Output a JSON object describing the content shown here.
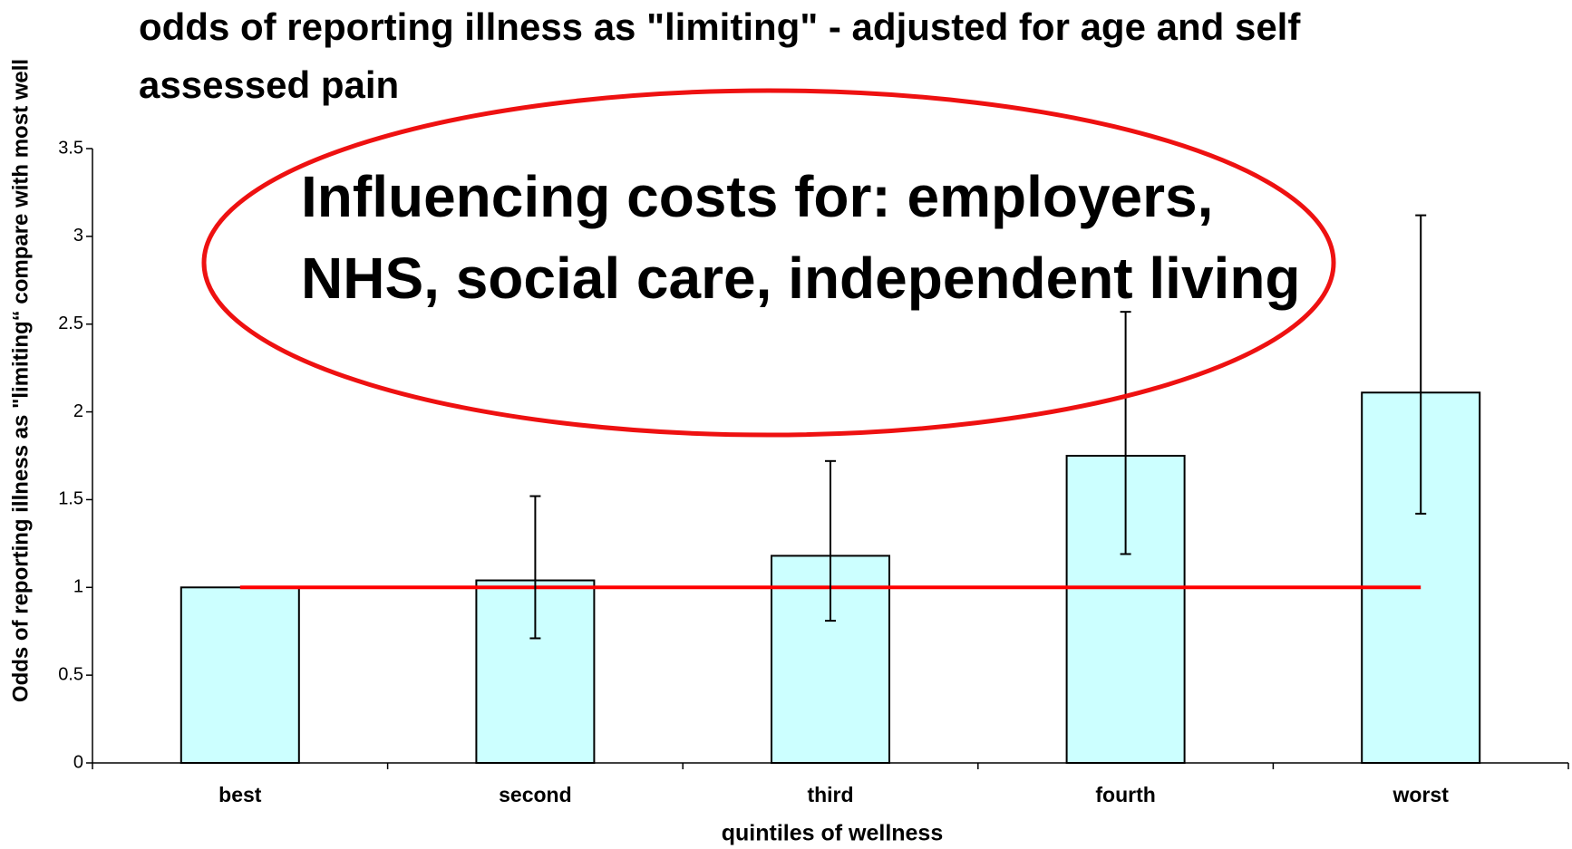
{
  "chart_data": {
    "type": "bar",
    "title": [
      "odds of reporting illness as \"limiting\" - adjusted for age and self",
      "assessed pain"
    ],
    "y_label": "Odds of reporting illness as \"limiting“ compare with most well",
    "x_label": "quintiles of wellness",
    "categories": [
      "best",
      "second",
      "third",
      "fourth",
      "worst"
    ],
    "values": [
      1.0,
      1.04,
      1.18,
      1.75,
      2.11
    ],
    "errors_low": [
      null,
      0.71,
      0.81,
      1.19,
      1.42
    ],
    "errors_high": [
      null,
      1.52,
      1.72,
      2.57,
      3.12
    ],
    "color": "#ccffff",
    "reference_line": {
      "value": 1,
      "color": "#ff0000"
    },
    "annotation": [
      "Influencing costs for: employers,",
      "NHS, social care, independent living"
    ],
    "annotation_color": "#ee1111",
    "ylim": [
      0,
      3.5
    ],
    "yticks": [
      0,
      0.5,
      1,
      1.5,
      2,
      2.5,
      3,
      3.5
    ],
    "grid": false
  }
}
